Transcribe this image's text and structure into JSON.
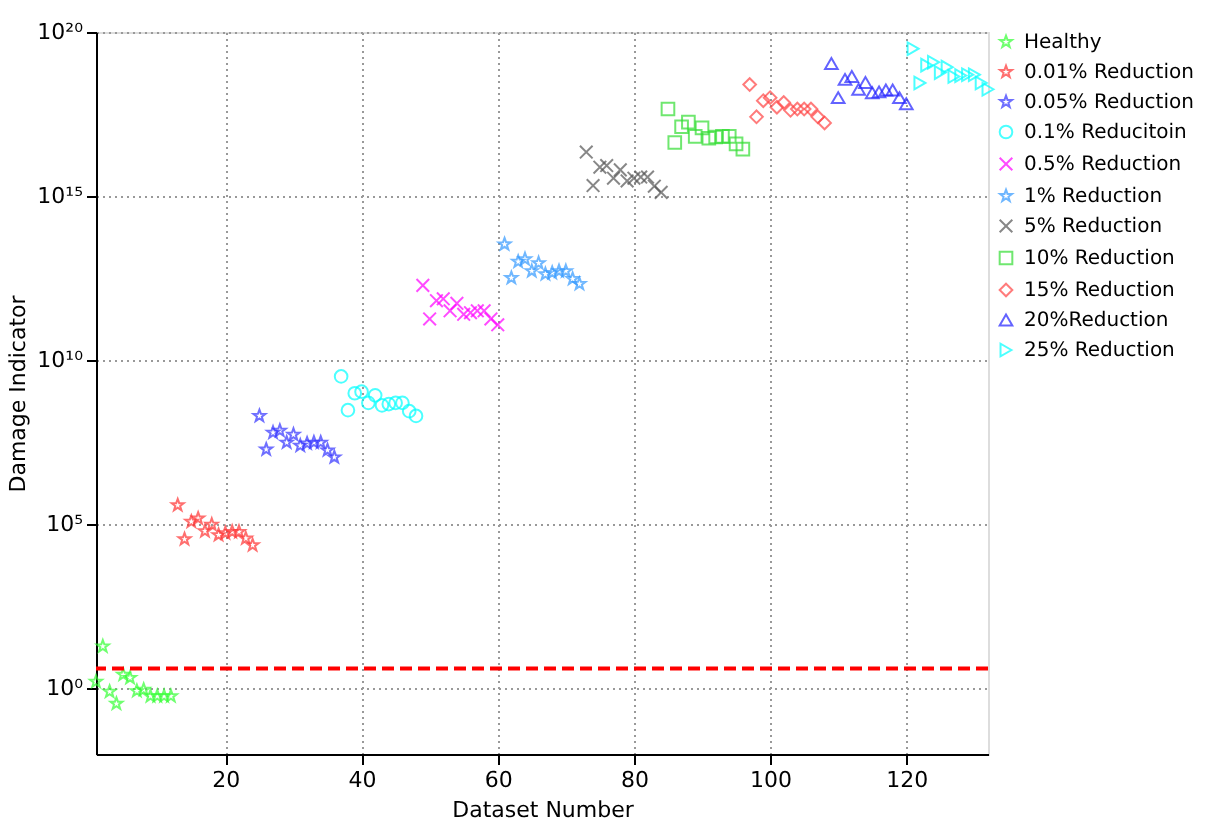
{
  "chart_data": {
    "type": "scatter",
    "xlabel": "Dataset Number",
    "ylabel": "Damage Indicator",
    "log": "y",
    "xlim": [
      1,
      132
    ],
    "xticks": [
      20,
      40,
      60,
      80,
      100,
      120
    ],
    "ylim": [
      0.01,
      1e+20
    ],
    "yticks": [
      {
        "value": 1,
        "label": "10⁰"
      },
      {
        "value": 100000.0,
        "label": "10⁵"
      },
      {
        "value": 10000000000.0,
        "label": "10¹⁰"
      },
      {
        "value": 1000000000000000.0,
        "label": "10¹⁵"
      },
      {
        "value": 1e+20,
        "label": "10²⁰"
      }
    ],
    "grid": true,
    "legend": "right",
    "ref_lines": [
      {
        "axis": "y",
        "value": 4,
        "color": "#ff0000",
        "line_style": "dashed"
      }
    ],
    "series": [
      {
        "name": "Healthy",
        "color": "#33ff33",
        "marker": "star",
        "x": [
          1,
          2,
          3,
          4,
          5,
          6,
          7,
          8,
          9,
          10,
          11,
          12
        ],
        "values": [
          1.6,
          19,
          0.79,
          0.34,
          2.6,
          2.1,
          0.83,
          0.91,
          0.58,
          0.58,
          0.58,
          0.58
        ]
      },
      {
        "name": "0.01% Reduction",
        "color": "#ff3333",
        "marker": "star",
        "x": [
          13,
          14,
          15,
          16,
          17,
          18,
          19,
          20,
          21,
          22,
          23,
          24
        ],
        "values": [
          380000.0,
          35000.0,
          120000.0,
          150000.0,
          62000.0,
          98000.0,
          47000.0,
          54000.0,
          59000.0,
          59000.0,
          37000.0,
          23000.0
        ]
      },
      {
        "name": "0.05% Reduction",
        "color": "#3333ff",
        "marker": "star",
        "x": [
          25,
          26,
          27,
          28,
          29,
          30,
          31,
          32,
          33,
          34,
          35,
          36
        ],
        "values": [
          200000000.0,
          19000000.0,
          62000000.0,
          71000000.0,
          31000000.0,
          54000000.0,
          25000000.0,
          29000000.0,
          31000000.0,
          31000000.0,
          18000000.0,
          11000000.0
        ]
      },
      {
        "name": "0.1% Reducitoin",
        "color": "#00ffff",
        "marker": "circle",
        "x": [
          37,
          38,
          39,
          40,
          41,
          42,
          43,
          44,
          45,
          46,
          47,
          48
        ],
        "values": [
          3200000000.0,
          300000000.0,
          980000000.0,
          1100000000.0,
          500000000.0,
          850000000.0,
          420000000.0,
          460000000.0,
          500000000.0,
          500000000.0,
          280000000.0,
          200000000.0
        ]
      },
      {
        "name": "0.5% Reduction",
        "color": "#ff00ff",
        "marker": "cross",
        "x": [
          49,
          50,
          51,
          52,
          53,
          54,
          55,
          56,
          57,
          58,
          59,
          60
        ],
        "values": [
          1900000000000.0,
          180000000000.0,
          650000000000.0,
          740000000000.0,
          320000000000.0,
          540000000000.0,
          250000000000.0,
          280000000000.0,
          320000000000.0,
          320000000000.0,
          180000000000.0,
          120000000000.0
        ]
      },
      {
        "name": "1% Reduction",
        "color": "#3399ff",
        "marker": "star",
        "x": [
          61,
          62,
          63,
          64,
          65,
          66,
          67,
          68,
          69,
          70,
          71,
          72
        ],
        "values": [
          34000000000000.0,
          3200000000000.0,
          10000000000000.0,
          12000000000000.0,
          5200000000000.0,
          9100000000000.0,
          4200000000000.0,
          4600000000000.0,
          5200000000000.0,
          5200000000000.0,
          3000000000000.0,
          2100000000000.0
        ]
      },
      {
        "name": "5% Reduction",
        "color": "#555555",
        "marker": "cross",
        "x": [
          73,
          74,
          75,
          76,
          77,
          78,
          79,
          80,
          81,
          82,
          83,
          84
        ],
        "values": [
          2.2e+16,
          2100000000000000.0,
          7600000000000000.0,
          8500000000000000.0,
          3500000000000000.0,
          6300000000000000.0,
          2900000000000000.0,
          3500000000000000.0,
          3800000000000000.0,
          3800000000000000.0,
          2000000000000000.0,
          1300000000000000.0
        ]
      },
      {
        "name": "10% Reduction",
        "color": "#33dd33",
        "marker": "square",
        "x": [
          85,
          86,
          87,
          88,
          89,
          90,
          91,
          92,
          93,
          94,
          95,
          96
        ],
        "values": [
          4.5e+17,
          4.3e+16,
          1.3e+17,
          1.8e+17,
          6.6e+16,
          1.2e+17,
          5.8e+16,
          6.3e+16,
          6.6e+16,
          6.6e+16,
          3.9e+16,
          2.7e+16
        ]
      },
      {
        "name": "15% Reduction",
        "color": "#ff4444",
        "marker": "diamond",
        "x": [
          97,
          98,
          99,
          100,
          101,
          102,
          103,
          104,
          105,
          106,
          107,
          108
        ],
        "values": [
          2.5e+18,
          2.6e+17,
          8.1e+17,
          1e+18,
          5.1e+17,
          7.1e+17,
          4.1e+17,
          4.5e+17,
          4.5e+17,
          4.5e+17,
          2.6e+17,
          1.7e+17
        ]
      },
      {
        "name": "20%Reduction",
        "color": "#2222ff",
        "marker": "triangle",
        "x": [
          109,
          110,
          111,
          112,
          113,
          114,
          115,
          116,
          117,
          118,
          119,
          120
        ],
        "values": [
          1.1e+19,
          1e+18,
          3.6e+18,
          4.4e+18,
          1.8e+18,
          2.9e+18,
          1.4e+18,
          1.5e+18,
          1.7e+18,
          1.7e+18,
          1e+18,
          6.5e+17
        ]
      },
      {
        "name": "25% Reduction",
        "color": "#00ffff",
        "marker": "triangle-right",
        "x": [
          121,
          122,
          123,
          124,
          125,
          126,
          127,
          128,
          129,
          130,
          131,
          132
        ],
        "values": [
          3.1e+19,
          2.8e+18,
          9.8e+18,
          1.2e+19,
          5.8e+18,
          8.5e+18,
          4.4e+18,
          4.7e+18,
          5e+18,
          5e+18,
          2.8e+18,
          1.8e+18
        ]
      }
    ]
  }
}
